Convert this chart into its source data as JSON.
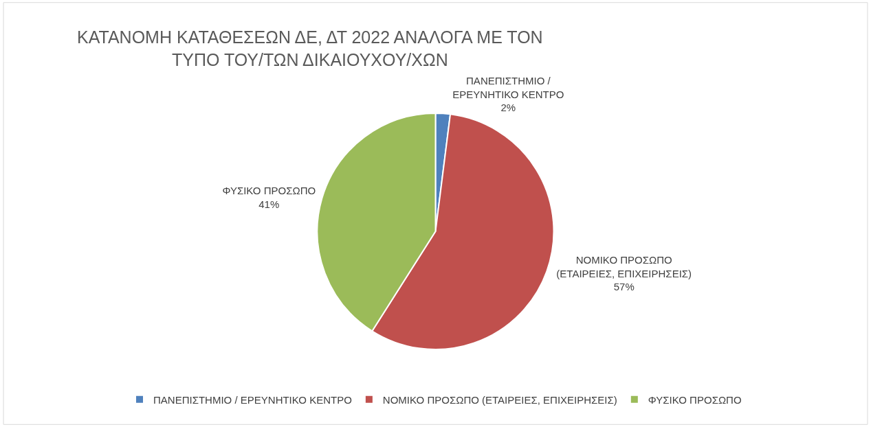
{
  "chart_data": {
    "type": "pie",
    "title": "ΚΑΤΑΝΟΜΗ ΚΑΤΑΘΕΣΕΩΝ ΔΕ, ΔΤ 2022 ΑΝΑΛΟΓΑ ΜΕ ΤΟΝ ΤΥΠΟ ΤΟΥ/ΤΩΝ ΔΙΚΑΙΟΥΧΟΥ/ΧΩΝ",
    "categories": [
      "ΠΑΝΕΠΙΣΤΗΜΙΟ / ΕΡΕΥΝΗΤΙΚΟ ΚΕΝΤΡΟ",
      "ΝΟΜΙΚΟ ΠΡΟΣΩΠΟ (ΕΤΑΙΡΕΙΕΣ, ΕΠΙΧΕΙΡΗΣΕΙΣ)",
      "ΦΥΣΙΚΟ ΠΡΟΣΩΠΟ"
    ],
    "values": [
      2,
      57,
      41
    ],
    "value_labels": [
      "2%",
      "57%",
      "41%"
    ],
    "colors": [
      "#4f81bd",
      "#c0504d",
      "#9bbb59"
    ],
    "legend": "bottom"
  }
}
